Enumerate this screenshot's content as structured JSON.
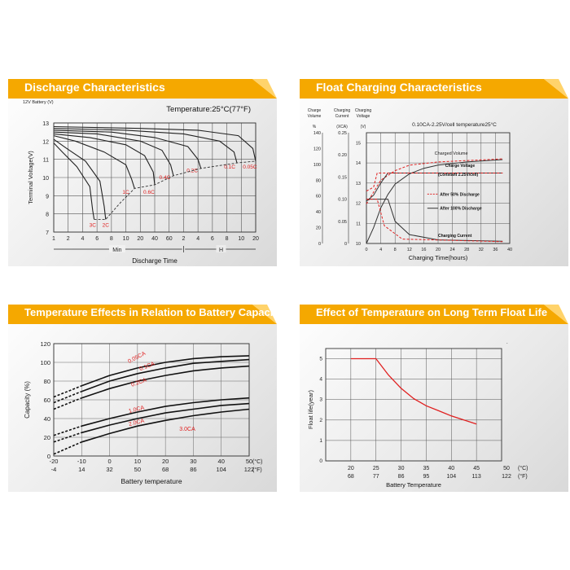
{
  "panels": {
    "discharge": {
      "title": "Discharge Characteristics"
    },
    "float_charging": {
      "title": "Float Charging Characteristics"
    },
    "temp_capacity": {
      "title": "Temperature Effects in Relation to Battery Capacity"
    },
    "float_life": {
      "title": "Effect of Temperature on Long Term Float Life"
    }
  },
  "colors": {
    "header_orange": "#f5a800",
    "curve_red": "#e02020",
    "grid": "#555555",
    "curve_dark": "#222222"
  },
  "chart_data": [
    {
      "id": "discharge",
      "type": "line",
      "title": "Discharge Characteristics",
      "battery_label": "12V Battery (V)",
      "ylabel": "Terminal Voltage(V)",
      "xlabel": "Discharge Time",
      "temperature": "Temperature:25°C(77°F)",
      "y_ticks": [
        "13",
        "12",
        "11",
        "10",
        "9",
        "8",
        "7"
      ],
      "ylim": [
        7,
        13
      ],
      "x_ticks": [
        "1",
        "2",
        "4",
        "6",
        "8",
        "10",
        "20",
        "40",
        "60",
        "2",
        "4",
        "6",
        "8",
        "10",
        "20"
      ],
      "unit_min": "Min",
      "unit_h": "H",
      "series": [
        {
          "name": "3C",
          "points": [
            [
              0.0,
              11.9
            ],
            [
              0.6,
              11.4
            ],
            [
              1.6,
              10.6
            ],
            [
              2.5,
              9.5
            ],
            [
              2.7,
              8.2
            ],
            [
              2.8,
              7.7
            ]
          ]
        },
        {
          "name": "2C",
          "points": [
            [
              0.0,
              12.1
            ],
            [
              0.9,
              11.6
            ],
            [
              2.2,
              10.9
            ],
            [
              3.2,
              9.8
            ],
            [
              3.5,
              8.4
            ],
            [
              3.6,
              7.7
            ]
          ]
        },
        {
          "name": "1C",
          "points": [
            [
              0.0,
              12.3
            ],
            [
              1.5,
              12.0
            ],
            [
              3.5,
              11.4
            ],
            [
              5.0,
              10.7
            ],
            [
              5.4,
              9.9
            ],
            [
              5.6,
              9.4
            ]
          ]
        },
        {
          "name": "0.6C",
          "points": [
            [
              0.0,
              12.4
            ],
            [
              2.5,
              12.2
            ],
            [
              5.0,
              11.8
            ],
            [
              6.3,
              11.2
            ],
            [
              6.9,
              10.3
            ],
            [
              7.0,
              9.6
            ]
          ]
        },
        {
          "name": "0.4C",
          "points": [
            [
              0.0,
              12.5
            ],
            [
              3.0,
              12.4
            ],
            [
              6.0,
              12.0
            ],
            [
              7.5,
              11.5
            ],
            [
              8.1,
              10.7
            ],
            [
              8.3,
              10.1
            ]
          ]
        },
        {
          "name": "0.2C",
          "points": [
            [
              0.0,
              12.6
            ],
            [
              4.0,
              12.5
            ],
            [
              7.0,
              12.2
            ],
            [
              9.3,
              11.7
            ],
            [
              10.0,
              11.0
            ],
            [
              10.2,
              10.5
            ]
          ]
        },
        {
          "name": "0.1C",
          "points": [
            [
              0.0,
              12.7
            ],
            [
              5.0,
              12.6
            ],
            [
              9.0,
              12.4
            ],
            [
              11.5,
              12.0
            ],
            [
              12.5,
              11.4
            ],
            [
              12.7,
              10.8
            ]
          ]
        },
        {
          "name": "0.05C",
          "points": [
            [
              0.0,
              12.8
            ],
            [
              6.0,
              12.7
            ],
            [
              10.0,
              12.6
            ],
            [
              12.8,
              12.3
            ],
            [
              13.8,
              11.6
            ],
            [
              14.0,
              10.9
            ]
          ]
        }
      ],
      "final_voltage_line": [
        [
          2.8,
          7.7
        ],
        [
          3.6,
          7.7
        ],
        [
          4.6,
          8.6
        ],
        [
          5.6,
          9.4
        ],
        [
          7.0,
          9.6
        ],
        [
          8.3,
          10.1
        ],
        [
          10.2,
          10.5
        ],
        [
          12.7,
          10.8
        ],
        [
          14.0,
          10.9
        ]
      ]
    },
    {
      "id": "float_charging",
      "type": "line",
      "title": "Float Charging Characteristics",
      "axis_headers": [
        "Charge Volume",
        "Charging Current",
        "Charging Voltage"
      ],
      "axis_units": [
        "%",
        "(XCA)",
        "(V)"
      ],
      "condition": "0.10CA-2.25V/cell   temperature25°C",
      "charge_volume_ticks": [
        "140",
        "120",
        "100",
        "80",
        "60",
        "40",
        "20",
        "0"
      ],
      "current_ticks": [
        "0.25",
        "0.20",
        "0.15",
        "0.10",
        "0.05",
        "0"
      ],
      "voltage_ticks": [
        "15",
        "14",
        "13",
        "12",
        "11",
        "10"
      ],
      "x_ticks": [
        "0",
        "4",
        "8",
        "12",
        "16",
        "20",
        "24",
        "28",
        "32",
        "36",
        "40"
      ],
      "xlabel": "Charging Time(hours)",
      "labels": {
        "charged_volume": "Charged Volume",
        "charge_voltage": "Charge Voltage",
        "charge_voltage_sub": "(Constant 2.25V/cell)",
        "after50": "After 50% Discharge",
        "after100": "After 100% Discharge",
        "charging_current": "Charging Current"
      }
    },
    {
      "id": "temp_capacity",
      "type": "line",
      "ylabel": "Capacity (%)",
      "xlabel": "Battery temperature",
      "y_ticks": [
        "120",
        "100",
        "80",
        "60",
        "40",
        "20",
        "0"
      ],
      "ylim": [
        0,
        120
      ],
      "x_ticks_c": [
        "-20",
        "-10",
        "0",
        "10",
        "20",
        "30",
        "40",
        "50"
      ],
      "x_ticks_f": [
        "-4",
        "14",
        "32",
        "50",
        "68",
        "86",
        "104",
        "122"
      ],
      "unit_c": "(°C)",
      "unit_f": "(°F)",
      "series": [
        {
          "name": "0.05CA",
          "points": [
            [
              -20,
              63
            ],
            [
              -10,
              75
            ],
            [
              0,
              86
            ],
            [
              10,
              94
            ],
            [
              20,
              100
            ],
            [
              30,
              104
            ],
            [
              40,
              106
            ],
            [
              50,
              107
            ]
          ]
        },
        {
          "name": "0.1CA",
          "points": [
            [
              -20,
              57
            ],
            [
              -10,
              69
            ],
            [
              0,
              80
            ],
            [
              10,
              88
            ],
            [
              20,
              94
            ],
            [
              30,
              99
            ],
            [
              40,
              101
            ],
            [
              50,
              103
            ]
          ]
        },
        {
          "name": "0.2CA",
          "points": [
            [
              -20,
              50
            ],
            [
              -10,
              62
            ],
            [
              0,
              72
            ],
            [
              10,
              80
            ],
            [
              20,
              86
            ],
            [
              30,
              91
            ],
            [
              40,
              94
            ],
            [
              50,
              96
            ]
          ]
        },
        {
          "name": "1.0CA",
          "points": [
            [
              -20,
              22
            ],
            [
              -10,
              32
            ],
            [
              0,
              40
            ],
            [
              10,
              47
            ],
            [
              20,
              53
            ],
            [
              30,
              57
            ],
            [
              40,
              60
            ],
            [
              50,
              62
            ]
          ]
        },
        {
          "name": "2.0CA",
          "points": [
            [
              -20,
              15
            ],
            [
              -10,
              25
            ],
            [
              0,
              33
            ],
            [
              10,
              40
            ],
            [
              20,
              46
            ],
            [
              30,
              50
            ],
            [
              40,
              54
            ],
            [
              50,
              56
            ]
          ]
        },
        {
          "name": "3.0CA",
          "points": [
            [
              -20,
              2
            ],
            [
              -10,
              15
            ],
            [
              0,
              24
            ],
            [
              10,
              32
            ],
            [
              20,
              38
            ],
            [
              30,
              43
            ],
            [
              40,
              47
            ],
            [
              50,
              50
            ]
          ]
        }
      ]
    },
    {
      "id": "float_life",
      "type": "line",
      "ylabel": "Float life(year)",
      "xlabel": "Battery Temperature",
      "y_ticks": [
        "5",
        "4",
        "3",
        "2",
        "1",
        "0"
      ],
      "ylim": [
        0,
        5.5
      ],
      "x_ticks_c": [
        "20",
        "25",
        "30",
        "35",
        "40",
        "45",
        "50"
      ],
      "x_ticks_f": [
        "68",
        "77",
        "86",
        "95",
        "104",
        "113",
        "122"
      ],
      "unit_c": "(°C)",
      "unit_f": "(°F)",
      "series": [
        {
          "points": [
            [
              20,
              5.0
            ],
            [
              25,
              5.0
            ],
            [
              27.5,
              4.2
            ],
            [
              30,
              3.55
            ],
            [
              32.5,
              3.05
            ],
            [
              35,
              2.7
            ],
            [
              37.5,
              2.45
            ],
            [
              40,
              2.2
            ],
            [
              42.5,
              2.0
            ],
            [
              45,
              1.8
            ]
          ]
        }
      ]
    }
  ]
}
